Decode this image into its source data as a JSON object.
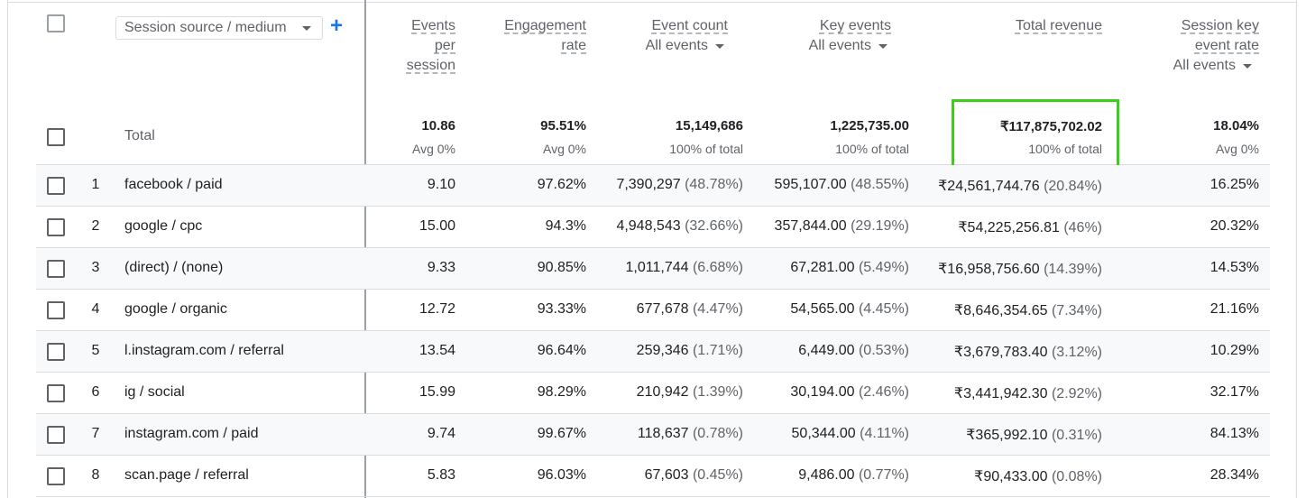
{
  "header": {
    "dimension_select": "Session source / medium",
    "columns": [
      {
        "title_lines": [
          "Events",
          "per",
          "session"
        ],
        "sub": ""
      },
      {
        "title_lines": [
          "Engagement",
          "rate"
        ],
        "sub": ""
      },
      {
        "title_lines": [
          "Event count"
        ],
        "sub": "All events"
      },
      {
        "title_lines": [
          "Key events"
        ],
        "sub": "All events"
      },
      {
        "title_lines": [
          "Total revenue"
        ],
        "sub": ""
      },
      {
        "title_lines": [
          "Session key",
          "event rate"
        ],
        "sub": "All events"
      }
    ]
  },
  "totals": {
    "label": "Total",
    "values": [
      "10.86",
      "95.51%",
      "15,149,686",
      "1,225,735.00",
      "₹117,875,702.02",
      "18.04%"
    ],
    "subs": [
      "Avg 0%",
      "Avg 0%",
      "100% of total",
      "100% of total",
      "100% of total",
      "Avg 0%"
    ]
  },
  "rows": [
    {
      "idx": "1",
      "dim": "facebook / paid",
      "eps": "9.10",
      "eng": "97.62%",
      "ec": "7,390,297",
      "ec_pct": "(48.78%)",
      "ke": "595,107.00",
      "ke_pct": "(48.55%)",
      "rev": "₹24,561,744.76",
      "rev_pct": "(20.84%)",
      "skr": "16.25%"
    },
    {
      "idx": "2",
      "dim": "google / cpc",
      "eps": "15.00",
      "eng": "94.3%",
      "ec": "4,948,543",
      "ec_pct": "(32.66%)",
      "ke": "357,844.00",
      "ke_pct": "(29.19%)",
      "rev": "₹54,225,256.81",
      "rev_pct": "(46%)",
      "skr": "20.32%"
    },
    {
      "idx": "3",
      "dim": "(direct) / (none)",
      "eps": "9.33",
      "eng": "90.85%",
      "ec": "1,011,744",
      "ec_pct": "(6.68%)",
      "ke": "67,281.00",
      "ke_pct": "(5.49%)",
      "rev": "₹16,958,756.60",
      "rev_pct": "(14.39%)",
      "skr": "14.53%"
    },
    {
      "idx": "4",
      "dim": "google / organic",
      "eps": "12.72",
      "eng": "93.33%",
      "ec": "677,678",
      "ec_pct": "(4.47%)",
      "ke": "54,565.00",
      "ke_pct": "(4.45%)",
      "rev": "₹8,646,354.65",
      "rev_pct": "(7.34%)",
      "skr": "21.16%"
    },
    {
      "idx": "5",
      "dim": "l.instagram.com / referral",
      "eps": "13.54",
      "eng": "96.64%",
      "ec": "259,346",
      "ec_pct": "(1.71%)",
      "ke": "6,449.00",
      "ke_pct": "(0.53%)",
      "rev": "₹3,679,783.40",
      "rev_pct": "(3.12%)",
      "skr": "10.29%"
    },
    {
      "idx": "6",
      "dim": "ig / social",
      "eps": "15.99",
      "eng": "98.29%",
      "ec": "210,942",
      "ec_pct": "(1.39%)",
      "ke": "30,194.00",
      "ke_pct": "(2.46%)",
      "rev": "₹3,441,942.30",
      "rev_pct": "(2.92%)",
      "skr": "32.17%"
    },
    {
      "idx": "7",
      "dim": "instagram.com / paid",
      "eps": "9.74",
      "eng": "99.67%",
      "ec": "118,637",
      "ec_pct": "(0.78%)",
      "ke": "50,344.00",
      "ke_pct": "(4.11%)",
      "rev": "₹365,992.10",
      "rev_pct": "(0.31%)",
      "skr": "84.13%"
    },
    {
      "idx": "8",
      "dim": "scan.page / referral",
      "eps": "5.83",
      "eng": "96.03%",
      "ec": "67,603",
      "ec_pct": "(0.45%)",
      "ke": "9,486.00",
      "ke_pct": "(0.77%)",
      "rev": "₹90,433.00",
      "rev_pct": "(0.08%)",
      "skr": "28.34%"
    }
  ],
  "colors": {
    "highlight": "#3ccf1a",
    "accent": "#1a73e8"
  },
  "icons": {
    "add": "plus-icon",
    "dropdown": "caret-down-icon"
  }
}
